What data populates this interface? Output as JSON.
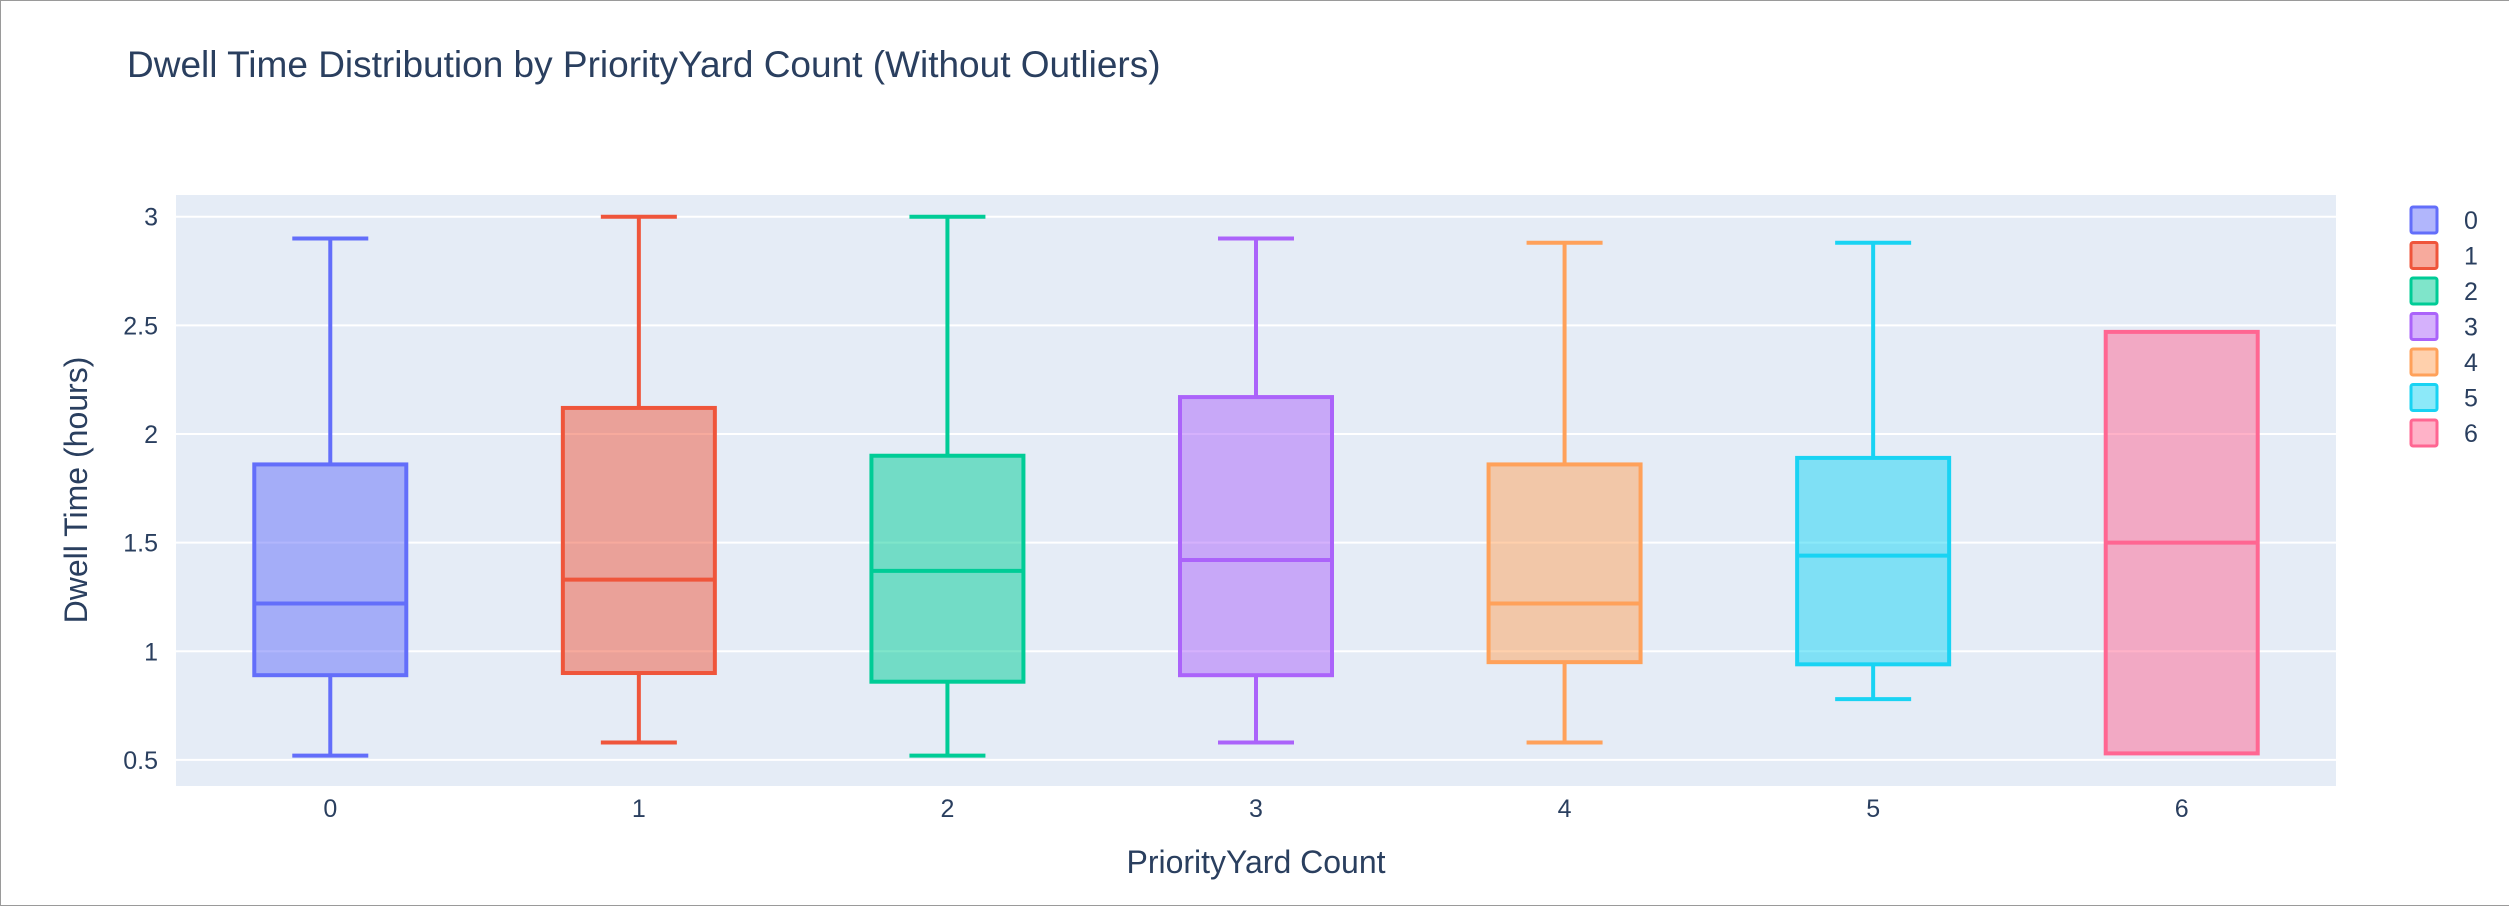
{
  "chart_data": {
    "type": "box",
    "title": "Dwell Time Distribution by PriorityYard Count (Without Outliers)",
    "xlabel": "PriorityYard Count",
    "ylabel": "Dwell Time (hours)",
    "ylim": [
      0.38,
      3.1
    ],
    "yticks": [
      0.5,
      1,
      1.5,
      2,
      2.5,
      3
    ],
    "ytick_labels": [
      "0.5",
      "1",
      "1.5",
      "2",
      "2.5",
      "3"
    ],
    "categories": [
      "0",
      "1",
      "2",
      "3",
      "4",
      "5",
      "6"
    ],
    "grid": true,
    "legend_position": "right",
    "plot_bgcolor": "#e5ecf6",
    "series": [
      {
        "name": "0",
        "color": "#636efa",
        "min": 0.52,
        "q1": 0.89,
        "median": 1.22,
        "q3": 1.86,
        "max": 2.9
      },
      {
        "name": "1",
        "color": "#ef553b",
        "min": 0.58,
        "q1": 0.9,
        "median": 1.33,
        "q3": 2.12,
        "max": 3.0
      },
      {
        "name": "2",
        "color": "#00cc96",
        "min": 0.52,
        "q1": 0.86,
        "median": 1.37,
        "q3": 1.9,
        "max": 3.0
      },
      {
        "name": "3",
        "color": "#ab63fa",
        "min": 0.58,
        "q1": 0.89,
        "median": 1.42,
        "q3": 2.17,
        "max": 2.9
      },
      {
        "name": "4",
        "color": "#ffa15a",
        "min": 0.58,
        "q1": 0.95,
        "median": 1.22,
        "q3": 1.86,
        "max": 2.88
      },
      {
        "name": "5",
        "color": "#19d3f3",
        "min": 0.78,
        "q1": 0.94,
        "median": 1.44,
        "q3": 1.89,
        "max": 2.88
      },
      {
        "name": "6",
        "color": "#ff6692",
        "min": 0.53,
        "q1": 0.53,
        "median": 1.5,
        "q3": 2.47,
        "max": 2.47
      }
    ]
  }
}
